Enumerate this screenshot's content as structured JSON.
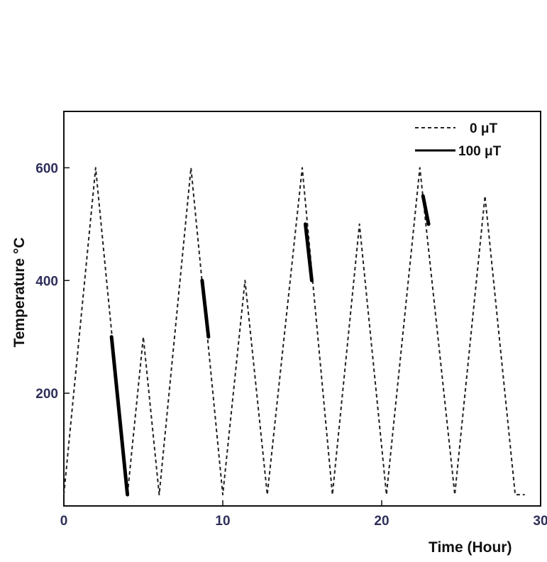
{
  "chart_data": {
    "type": "line",
    "title": "",
    "xlabel": "Time (Hour)",
    "ylabel": "Temperature °C",
    "xlim": [
      0,
      30
    ],
    "ylim": [
      0,
      700
    ],
    "xticks": [
      0,
      10,
      20,
      30
    ],
    "yticks": [
      200,
      400,
      600
    ],
    "grid": false,
    "legend_position": "top-right",
    "series": [
      {
        "name": "0 μT",
        "style": "dashed",
        "color": "#222222",
        "x": [
          0,
          2,
          4,
          5,
          6,
          8,
          10,
          11.4,
          12.8,
          15,
          16.9,
          18.6,
          20.3,
          22.4,
          24.6,
          26.5,
          28.4,
          29
        ],
        "y": [
          20,
          600,
          20,
          300,
          20,
          600,
          20,
          400,
          20,
          600,
          20,
          500,
          20,
          600,
          20,
          550,
          20,
          20
        ]
      },
      {
        "name": "100 μT",
        "style": "solid",
        "color": "#000000",
        "segments": [
          {
            "x": [
              3,
              4
            ],
            "y": [
              300,
              20
            ]
          },
          {
            "x": [
              8.7,
              9.1
            ],
            "y": [
              400,
              300
            ]
          },
          {
            "x": [
              15.2,
              15.6
            ],
            "y": [
              500,
              400
            ]
          },
          {
            "x": [
              22.6,
              22.95
            ],
            "y": [
              550,
              500
            ]
          }
        ]
      }
    ]
  }
}
